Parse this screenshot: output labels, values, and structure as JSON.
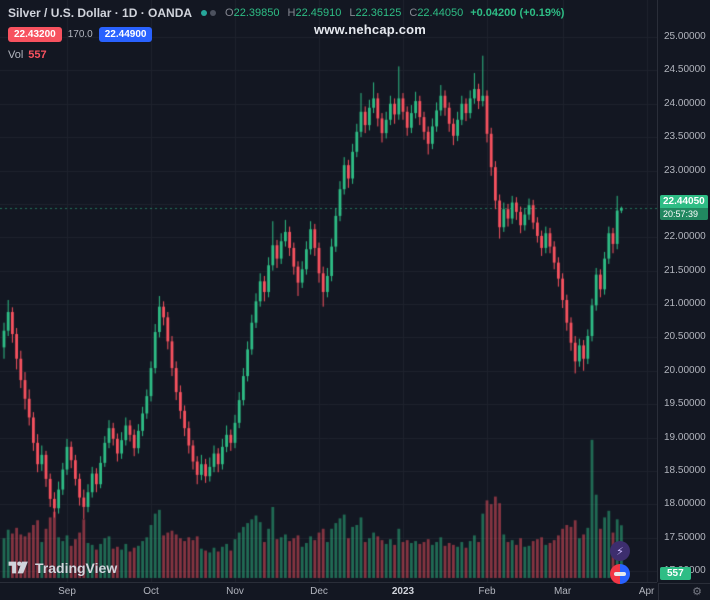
{
  "colors": {
    "bg": "#131722",
    "grid": "#1e222d",
    "axis_text": "#b2b5be",
    "up": "#2ebd85",
    "down": "#f7525f",
    "vol_up": "rgba(46,189,133,0.5)",
    "vol_down": "rgba(247,82,95,0.5)",
    "accent_blue": "#2962ff",
    "tag_green": "#2ebd85"
  },
  "header": {
    "symbol_title": "Silver / U.S. Dollar · 1D · OANDA",
    "ohlc": {
      "open_label": "O",
      "open": "22.39850",
      "high_label": "H",
      "high": "22.45910",
      "low_label": "L",
      "low": "22.36125",
      "close_label": "C",
      "close": "22.44050",
      "change": "+0.04200 (+0.19%)"
    },
    "sell_price": "22.43200",
    "spread": "170.0",
    "buy_price": "22.44900",
    "vol_label": "Vol",
    "vol_value": "557"
  },
  "watermark": "www.nehcap.com",
  "price_scale": {
    "labels": [
      {
        "text": "25.00000",
        "price": 25.0
      },
      {
        "text": "24.50000",
        "price": 24.5
      },
      {
        "text": "24.00000",
        "price": 24.0
      },
      {
        "text": "23.50000",
        "price": 23.5
      },
      {
        "text": "23.00000",
        "price": 23.0
      },
      {
        "text": "22.50000",
        "price": 22.5
      },
      {
        "text": "22.00000",
        "price": 22.0
      },
      {
        "text": "21.50000",
        "price": 21.5
      },
      {
        "text": "21.00000",
        "price": 21.0
      },
      {
        "text": "20.50000",
        "price": 20.5
      },
      {
        "text": "20.00000",
        "price": 20.0
      },
      {
        "text": "19.50000",
        "price": 19.5
      },
      {
        "text": "19.00000",
        "price": 19.0
      },
      {
        "text": "18.50000",
        "price": 18.5
      },
      {
        "text": "18.00000",
        "price": 18.0
      },
      {
        "text": "17.50000",
        "price": 17.5
      },
      {
        "text": "17.00000",
        "price": 17.0
      }
    ],
    "current_price": "22.44050",
    "countdown": "20:57:39",
    "volume_badge": "557"
  },
  "time_scale": {
    "labels": [
      {
        "text": "Sep",
        "bar": 15,
        "major": false
      },
      {
        "text": "Oct",
        "bar": 35,
        "major": false
      },
      {
        "text": "Nov",
        "bar": 55,
        "major": false
      },
      {
        "text": "Dec",
        "bar": 75,
        "major": false
      },
      {
        "text": "2023",
        "bar": 95,
        "major": true
      },
      {
        "text": "Feb",
        "bar": 115,
        "major": false
      },
      {
        "text": "Mar",
        "bar": 133,
        "major": false
      },
      {
        "text": "Apr",
        "bar": 153,
        "major": false
      }
    ]
  },
  "footer": {
    "brand": "TradingView"
  },
  "side_buttons": {
    "lightning": "⚡",
    "gear": "⚙"
  },
  "chart_data": {
    "type": "candlestick_with_volume",
    "title": "Silver / U.S. Dollar",
    "interval": "1D",
    "exchange": "OANDA",
    "price_axis": {
      "min": 17.0,
      "max": 25.0,
      "step": 0.5
    },
    "x_axis_months": [
      "Sep",
      "Oct",
      "Nov",
      "Dec",
      "2023",
      "Feb",
      "Mar",
      "Apr"
    ],
    "last_close": 22.4405,
    "volume_scale_max": 1500,
    "candles_format": [
      "open",
      "high",
      "low",
      "close",
      "volume"
    ],
    "candles": [
      [
        20.35,
        20.72,
        20.18,
        20.6,
        420
      ],
      [
        20.6,
        21.06,
        20.52,
        20.88,
        510
      ],
      [
        20.88,
        20.95,
        20.42,
        20.55,
        470
      ],
      [
        20.55,
        20.64,
        20.02,
        20.18,
        530
      ],
      [
        20.18,
        20.3,
        19.74,
        19.86,
        460
      ],
      [
        19.86,
        19.98,
        19.42,
        19.58,
        440
      ],
      [
        19.58,
        19.72,
        19.18,
        19.3,
        480
      ],
      [
        19.3,
        19.38,
        18.8,
        18.92,
        560
      ],
      [
        18.92,
        19.05,
        18.48,
        18.6,
        610
      ],
      [
        18.6,
        18.88,
        18.5,
        18.74,
        380
      ],
      [
        18.74,
        18.8,
        18.26,
        18.38,
        520
      ],
      [
        18.38,
        18.46,
        17.96,
        18.08,
        640
      ],
      [
        18.08,
        18.18,
        17.8,
        17.94,
        700
      ],
      [
        17.94,
        18.34,
        17.86,
        18.22,
        430
      ],
      [
        18.22,
        18.62,
        18.14,
        18.52,
        390
      ],
      [
        18.52,
        18.98,
        18.44,
        18.86,
        450
      ],
      [
        18.86,
        18.94,
        18.54,
        18.66,
        340
      ],
      [
        18.66,
        18.74,
        18.28,
        18.38,
        410
      ],
      [
        18.38,
        18.46,
        17.98,
        18.1,
        480
      ],
      [
        18.1,
        18.22,
        17.78,
        17.96,
        620
      ],
      [
        17.96,
        18.3,
        17.88,
        18.18,
        370
      ],
      [
        18.18,
        18.56,
        18.1,
        18.46,
        350
      ],
      [
        18.46,
        18.54,
        18.18,
        18.3,
        300
      ],
      [
        18.3,
        18.72,
        18.24,
        18.62,
        360
      ],
      [
        18.62,
        19.02,
        18.56,
        18.92,
        420
      ],
      [
        18.92,
        19.26,
        18.84,
        19.14,
        440
      ],
      [
        19.14,
        19.22,
        18.88,
        18.98,
        310
      ],
      [
        18.98,
        19.06,
        18.64,
        18.76,
        330
      ],
      [
        18.76,
        19.08,
        18.68,
        18.96,
        300
      ],
      [
        18.96,
        19.3,
        18.88,
        19.18,
        360
      ],
      [
        19.18,
        19.26,
        18.94,
        19.04,
        280
      ],
      [
        19.04,
        19.12,
        18.72,
        18.84,
        320
      ],
      [
        18.84,
        19.2,
        18.76,
        19.1,
        340
      ],
      [
        19.1,
        19.46,
        19.02,
        19.36,
        390
      ],
      [
        19.36,
        19.72,
        19.28,
        19.62,
        430
      ],
      [
        19.62,
        20.14,
        19.54,
        20.04,
        560
      ],
      [
        20.04,
        20.7,
        19.96,
        20.58,
        680
      ],
      [
        20.58,
        21.12,
        20.5,
        20.96,
        720
      ],
      [
        20.96,
        21.04,
        20.68,
        20.8,
        450
      ],
      [
        20.8,
        20.88,
        20.32,
        20.44,
        480
      ],
      [
        20.44,
        20.52,
        19.92,
        20.04,
        500
      ],
      [
        20.04,
        20.14,
        19.56,
        19.68,
        460
      ],
      [
        19.68,
        19.78,
        19.28,
        19.4,
        420
      ],
      [
        19.4,
        19.48,
        19.02,
        19.14,
        390
      ],
      [
        19.14,
        19.24,
        18.76,
        18.88,
        430
      ],
      [
        18.88,
        18.96,
        18.52,
        18.64,
        400
      ],
      [
        18.64,
        18.72,
        18.3,
        18.44,
        440
      ],
      [
        18.44,
        18.74,
        18.36,
        18.6,
        310
      ],
      [
        18.6,
        18.68,
        18.32,
        18.42,
        290
      ],
      [
        18.42,
        18.7,
        18.34,
        18.56,
        270
      ],
      [
        18.56,
        18.88,
        18.48,
        18.76,
        320
      ],
      [
        18.76,
        18.84,
        18.48,
        18.6,
        280
      ],
      [
        18.6,
        18.98,
        18.52,
        18.86,
        330
      ],
      [
        18.86,
        19.18,
        18.78,
        19.04,
        360
      ],
      [
        19.04,
        19.12,
        18.8,
        18.92,
        290
      ],
      [
        18.92,
        19.34,
        18.84,
        19.22,
        410
      ],
      [
        19.22,
        19.68,
        19.14,
        19.56,
        480
      ],
      [
        19.56,
        20.04,
        19.48,
        19.92,
        540
      ],
      [
        19.92,
        20.44,
        19.84,
        20.32,
        580
      ],
      [
        20.32,
        20.84,
        20.24,
        20.72,
        620
      ],
      [
        20.72,
        21.16,
        20.64,
        21.04,
        660
      ],
      [
        21.04,
        21.46,
        20.96,
        21.34,
        590
      ],
      [
        21.34,
        21.42,
        21.04,
        21.18,
        380
      ],
      [
        21.18,
        21.7,
        21.1,
        21.58,
        520
      ],
      [
        21.58,
        22.24,
        21.5,
        21.88,
        750
      ],
      [
        21.88,
        21.96,
        21.54,
        21.68,
        410
      ],
      [
        21.68,
        22.06,
        21.6,
        21.94,
        430
      ],
      [
        21.94,
        22.26,
        21.86,
        22.08,
        460
      ],
      [
        22.08,
        22.16,
        21.72,
        21.84,
        390
      ],
      [
        21.84,
        21.92,
        21.44,
        21.56,
        420
      ],
      [
        21.56,
        21.64,
        21.12,
        21.32,
        450
      ],
      [
        21.32,
        21.64,
        21.24,
        21.52,
        330
      ],
      [
        21.52,
        21.94,
        21.44,
        21.82,
        370
      ],
      [
        21.82,
        22.24,
        21.74,
        22.12,
        440
      ],
      [
        22.12,
        22.2,
        21.72,
        21.84,
        400
      ],
      [
        21.84,
        21.92,
        21.32,
        21.46,
        480
      ],
      [
        21.46,
        21.56,
        20.96,
        21.18,
        520
      ],
      [
        21.18,
        21.54,
        21.1,
        21.42,
        380
      ],
      [
        21.42,
        21.98,
        21.34,
        21.86,
        520
      ],
      [
        21.86,
        22.44,
        21.78,
        22.32,
        580
      ],
      [
        22.32,
        22.84,
        22.24,
        22.72,
        630
      ],
      [
        22.72,
        23.2,
        22.64,
        23.08,
        670
      ],
      [
        23.08,
        23.16,
        22.74,
        22.88,
        420
      ],
      [
        22.88,
        23.4,
        22.8,
        23.28,
        540
      ],
      [
        23.28,
        23.7,
        23.2,
        23.58,
        560
      ],
      [
        23.58,
        24.16,
        23.5,
        23.88,
        640
      ],
      [
        23.88,
        23.96,
        23.56,
        23.68,
        380
      ],
      [
        23.68,
        24.06,
        23.6,
        23.94,
        420
      ],
      [
        23.94,
        24.32,
        23.86,
        24.08,
        480
      ],
      [
        24.08,
        24.16,
        23.66,
        23.78,
        440
      ],
      [
        23.78,
        23.86,
        23.42,
        23.56,
        400
      ],
      [
        23.56,
        23.88,
        23.48,
        23.76,
        360
      ],
      [
        23.76,
        24.12,
        23.68,
        24.0,
        410
      ],
      [
        24.0,
        24.08,
        23.7,
        23.84,
        350
      ],
      [
        23.84,
        24.56,
        23.76,
        24.08,
        520
      ],
      [
        24.08,
        24.16,
        23.76,
        23.88,
        380
      ],
      [
        23.88,
        23.96,
        23.52,
        23.64,
        400
      ],
      [
        23.64,
        23.98,
        23.56,
        23.86,
        370
      ],
      [
        23.86,
        24.18,
        23.78,
        24.04,
        390
      ],
      [
        24.04,
        24.12,
        23.68,
        23.8,
        360
      ],
      [
        23.8,
        23.88,
        23.46,
        23.58,
        380
      ],
      [
        23.58,
        23.66,
        23.24,
        23.4,
        410
      ],
      [
        23.4,
        23.78,
        23.32,
        23.66,
        350
      ],
      [
        23.66,
        24.02,
        23.58,
        23.9,
        380
      ],
      [
        23.9,
        24.28,
        23.82,
        24.12,
        430
      ],
      [
        24.12,
        24.2,
        23.82,
        23.94,
        340
      ],
      [
        23.94,
        24.02,
        23.58,
        23.7,
        370
      ],
      [
        23.7,
        23.78,
        23.38,
        23.52,
        350
      ],
      [
        23.52,
        23.88,
        23.44,
        23.76,
        330
      ],
      [
        23.76,
        24.12,
        23.68,
        24.0,
        380
      ],
      [
        24.0,
        24.08,
        23.74,
        23.86,
        320
      ],
      [
        23.86,
        24.2,
        23.78,
        24.08,
        390
      ],
      [
        24.08,
        24.46,
        24.0,
        24.22,
        450
      ],
      [
        24.22,
        24.3,
        23.92,
        24.04,
        380
      ],
      [
        24.04,
        24.72,
        23.96,
        24.12,
        680
      ],
      [
        24.12,
        24.2,
        23.42,
        23.55,
        820
      ],
      [
        23.55,
        23.64,
        22.92,
        23.05,
        780
      ],
      [
        23.05,
        23.14,
        22.42,
        22.55,
        860
      ],
      [
        22.55,
        22.64,
        21.98,
        22.15,
        790
      ],
      [
        22.15,
        22.52,
        22.08,
        22.42,
        460
      ],
      [
        22.42,
        22.5,
        22.16,
        22.28,
        380
      ],
      [
        22.28,
        22.62,
        22.2,
        22.52,
        400
      ],
      [
        22.52,
        22.6,
        22.26,
        22.38,
        350
      ],
      [
        22.38,
        22.46,
        22.06,
        22.18,
        420
      ],
      [
        22.18,
        22.44,
        22.1,
        22.34,
        330
      ],
      [
        22.34,
        22.58,
        22.26,
        22.48,
        340
      ],
      [
        22.48,
        22.56,
        22.12,
        22.22,
        390
      ],
      [
        22.22,
        22.3,
        21.92,
        22.02,
        410
      ],
      [
        22.02,
        22.1,
        21.72,
        21.84,
        430
      ],
      [
        21.84,
        22.16,
        21.76,
        22.06,
        350
      ],
      [
        22.06,
        22.14,
        21.76,
        21.86,
        370
      ],
      [
        21.86,
        21.94,
        21.52,
        21.62,
        400
      ],
      [
        21.62,
        21.7,
        21.26,
        21.38,
        450
      ],
      [
        21.38,
        21.46,
        20.94,
        21.06,
        520
      ],
      [
        21.06,
        21.14,
        20.6,
        20.72,
        560
      ],
      [
        20.72,
        20.8,
        20.3,
        20.42,
        540
      ],
      [
        20.42,
        20.52,
        19.96,
        20.14,
        610
      ],
      [
        20.14,
        20.48,
        20.06,
        20.38,
        420
      ],
      [
        20.38,
        20.46,
        20.0,
        20.18,
        460
      ],
      [
        20.18,
        20.62,
        20.1,
        20.52,
        530
      ],
      [
        20.52,
        21.08,
        20.44,
        20.98,
        1460
      ],
      [
        20.98,
        21.54,
        20.9,
        21.44,
        880
      ],
      [
        21.44,
        21.52,
        21.1,
        21.22,
        520
      ],
      [
        21.22,
        21.78,
        21.14,
        21.68,
        640
      ],
      [
        21.68,
        22.16,
        21.6,
        22.06,
        710
      ],
      [
        22.06,
        22.14,
        21.76,
        21.9,
        480
      ],
      [
        21.9,
        22.62,
        21.82,
        22.4,
        620
      ],
      [
        22.3985,
        22.4591,
        22.3613,
        22.4405,
        557
      ]
    ]
  }
}
